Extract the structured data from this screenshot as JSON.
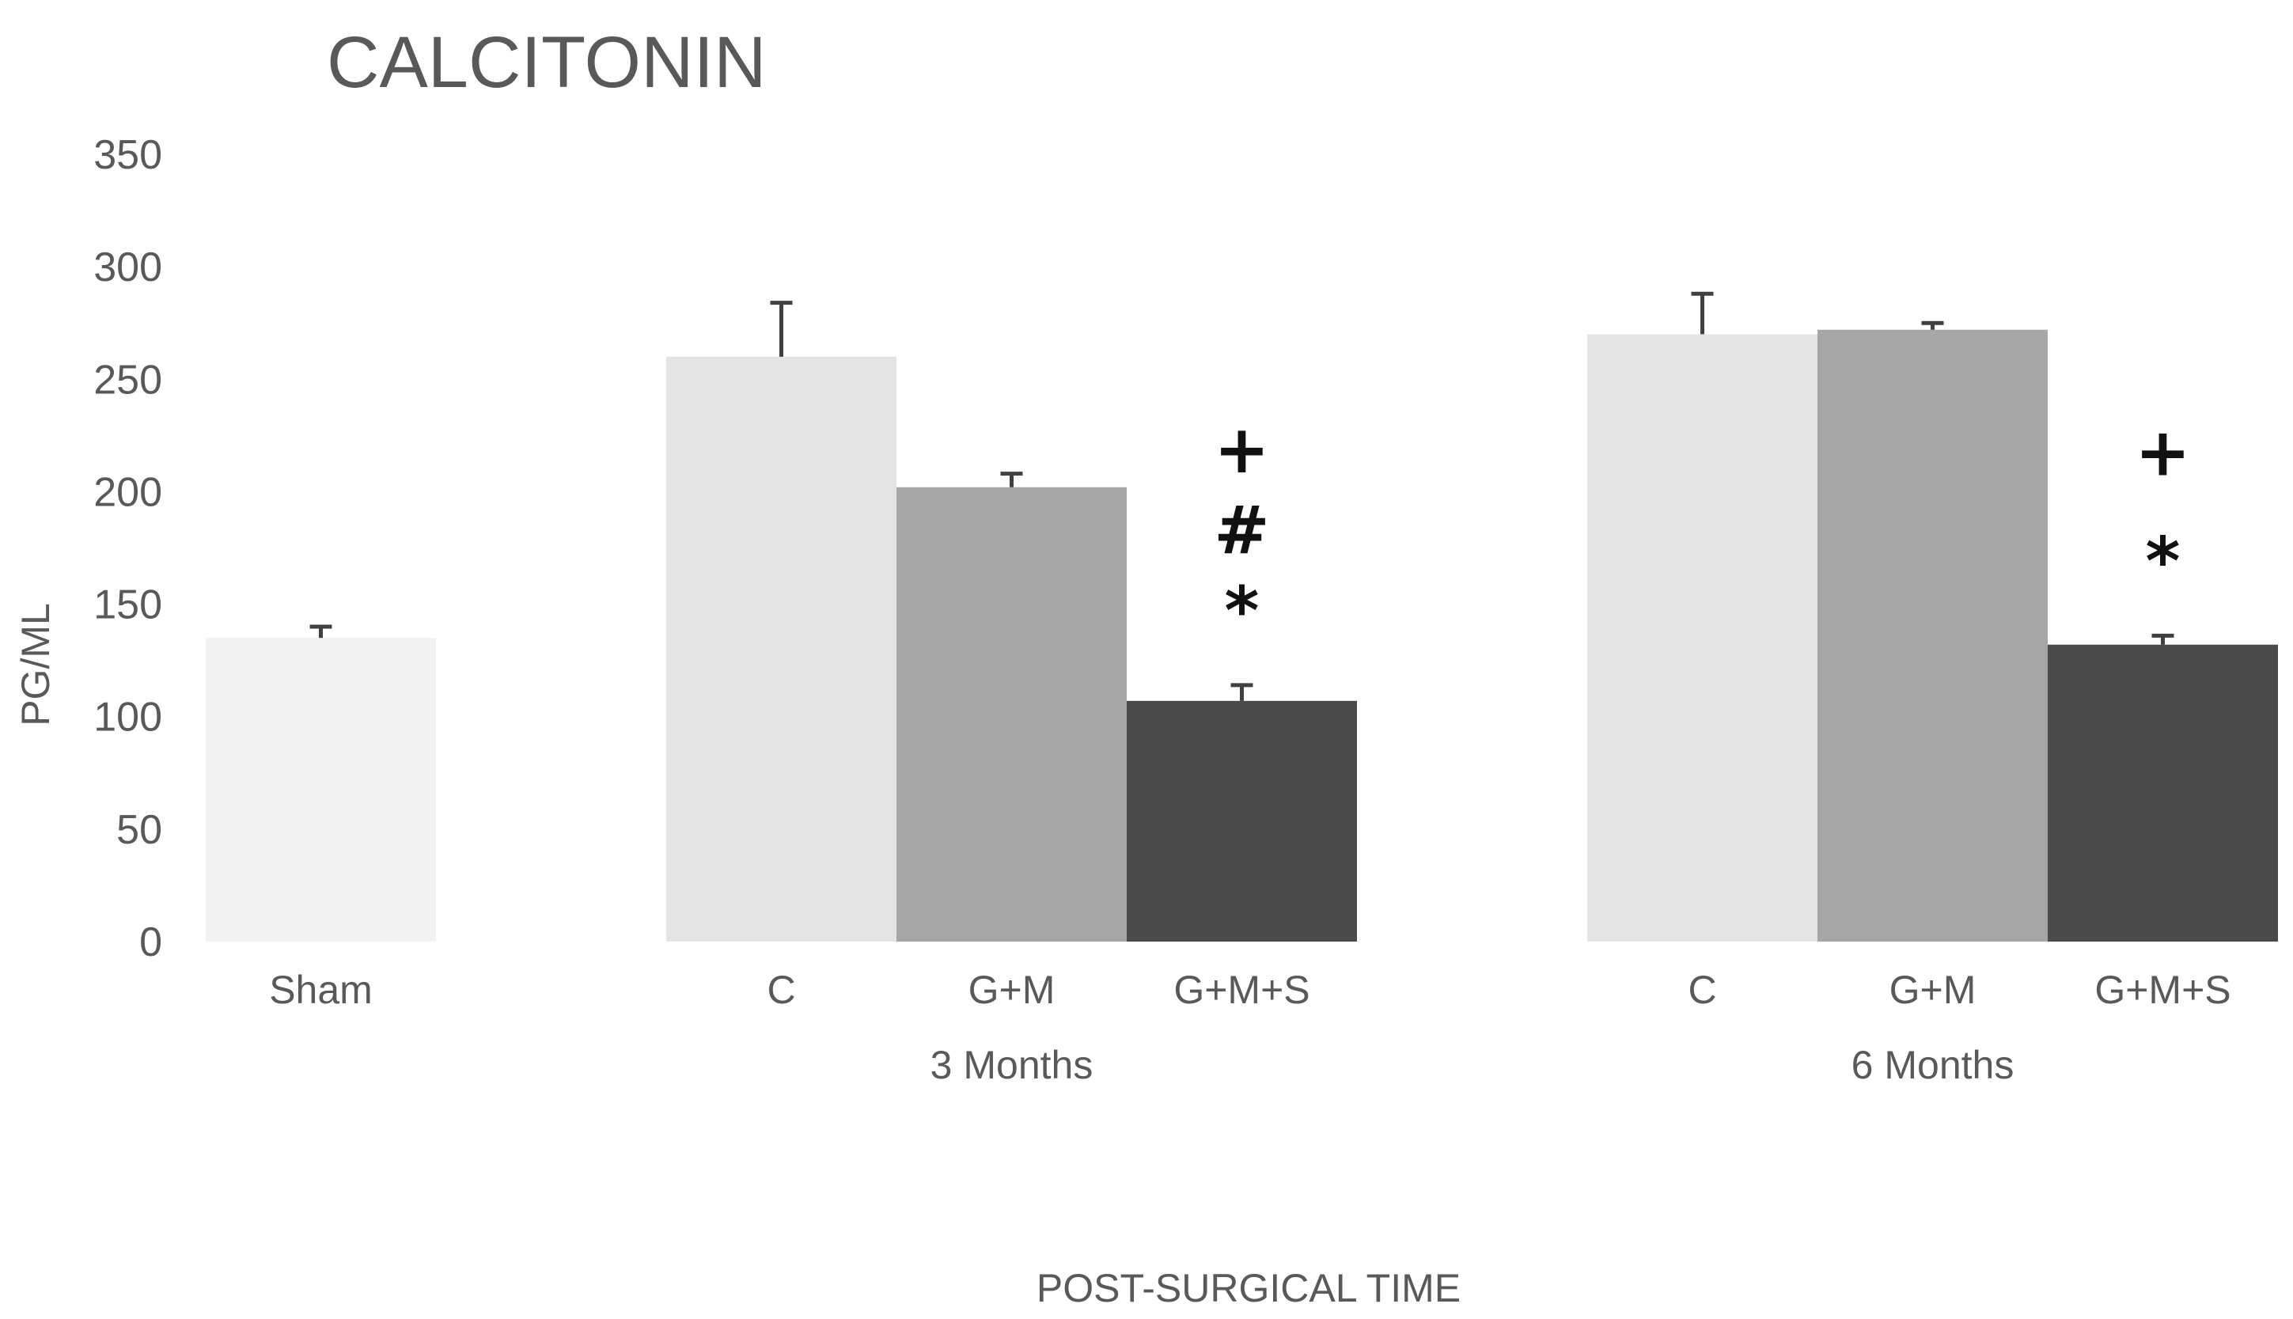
{
  "chart_data": {
    "type": "bar",
    "title": "CALCITONIN",
    "xlabel": "POST-SURGICAL TIME",
    "ylabel": "PG/ML",
    "ylim": [
      0,
      350
    ],
    "yticks": [
      0,
      50,
      100,
      150,
      200,
      250,
      300,
      350
    ],
    "grid": false,
    "legend": "none",
    "groups": [
      {
        "label": "",
        "bars": [
          {
            "category": "Sham",
            "value": 135,
            "error": 5,
            "color": "#f2f2f2",
            "annotations": []
          }
        ]
      },
      {
        "label": "3 Months",
        "bars": [
          {
            "category": "C",
            "value": 260,
            "error": 24,
            "color": "#e3e3e3",
            "annotations": []
          },
          {
            "category": "G+M",
            "value": 202,
            "error": 6,
            "color": "#a6a6a6",
            "annotations": []
          },
          {
            "category": "G+M+S",
            "value": 107,
            "error": 7,
            "color": "#4a4a4a",
            "annotations": [
              "+",
              "#",
              "*"
            ]
          }
        ]
      },
      {
        "label": "6 Months",
        "bars": [
          {
            "category": "C",
            "value": 270,
            "error": 18,
            "color": "#e3e3e3",
            "annotations": []
          },
          {
            "category": "G+M",
            "value": 272,
            "error": 3,
            "color": "#a6a6a6",
            "annotations": []
          },
          {
            "category": "G+M+S",
            "value": 132,
            "error": 4,
            "color": "#4a4a4a",
            "annotations": [
              "+",
              "*"
            ]
          }
        ]
      }
    ]
  }
}
